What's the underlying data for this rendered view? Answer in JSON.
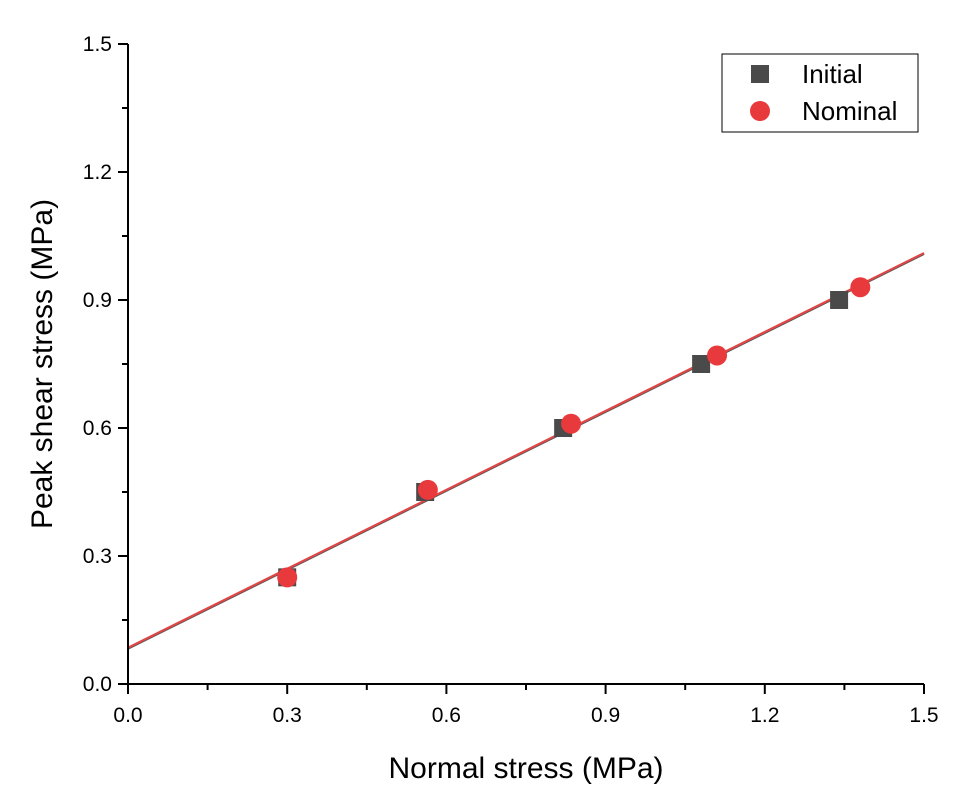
{
  "chart_data": {
    "type": "scatter",
    "title": "",
    "xlabel": "Normal stress (MPa)",
    "ylabel": "Peak shear stress (MPa)",
    "xlim": [
      0.0,
      1.5
    ],
    "ylim": [
      0.0,
      1.5
    ],
    "x_ticks": [
      "0.0",
      "0.3",
      "0.6",
      "0.9",
      "1.2",
      "1.5"
    ],
    "y_ticks": [
      "0.0",
      "0.3",
      "0.6",
      "0.9",
      "1.2",
      "1.5"
    ],
    "grid": false,
    "legend_position": "top-right",
    "series": [
      {
        "name": "Initial",
        "marker": "square",
        "color": "#4a4a4a",
        "x": [
          0.3,
          0.56,
          0.82,
          1.08,
          1.34
        ],
        "y": [
          0.25,
          0.45,
          0.6,
          0.75,
          0.9
        ]
      },
      {
        "name": "Nominal",
        "marker": "circle",
        "color": "#e8393c",
        "x": [
          0.3,
          0.565,
          0.835,
          1.11,
          1.38
        ],
        "y": [
          0.25,
          0.455,
          0.61,
          0.77,
          0.93
        ]
      }
    ],
    "fit_lines": [
      {
        "color": "#e04646",
        "x": [
          0.0,
          1.5
        ],
        "y": [
          0.085,
          1.01
        ]
      },
      {
        "color": "#555555",
        "x": [
          0.0,
          1.5
        ],
        "y": [
          0.083,
          1.008
        ]
      }
    ]
  }
}
